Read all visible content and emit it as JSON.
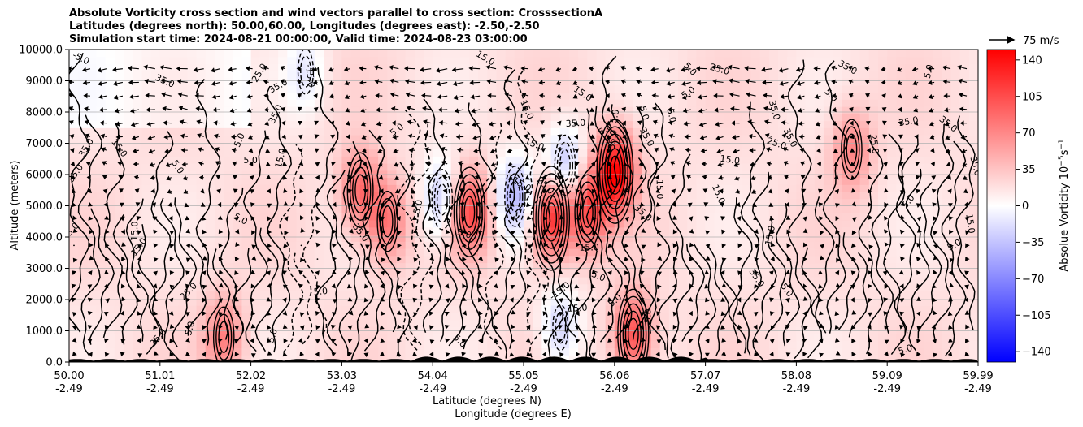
{
  "chart_data": {
    "type": "heatmap",
    "title_lines": [
      "Absolute Vorticity cross section and wind vectors parallel to cross section: CrosssectionA",
      "Latitudes (degrees north): 50.00,60.00, Longitudes (degrees east): -2.50,-2.50",
      "Simulation start time: 2024-08-21 00:00:00, Valid time: 2024-08-23 03:00:00"
    ],
    "ylabel": "Altitude (meters)",
    "xlabel_lines": [
      "Latitude (degrees N)",
      "Longitude (degrees E)"
    ],
    "x_ticks": [
      {
        "lat": "50.00",
        "lon": "-2.49"
      },
      {
        "lat": "51.01",
        "lon": "-2.49"
      },
      {
        "lat": "52.02",
        "lon": "-2.49"
      },
      {
        "lat": "53.03",
        "lon": "-2.49"
      },
      {
        "lat": "54.04",
        "lon": "-2.49"
      },
      {
        "lat": "55.05",
        "lon": "-2.49"
      },
      {
        "lat": "56.06",
        "lon": "-2.49"
      },
      {
        "lat": "57.07",
        "lon": "-2.49"
      },
      {
        "lat": "58.08",
        "lon": "-2.49"
      },
      {
        "lat": "59.09",
        "lon": "-2.49"
      },
      {
        "lat": "59.99",
        "lon": "-2.49"
      }
    ],
    "xlim": [
      50.0,
      59.99
    ],
    "y_ticks": [
      "0.0",
      "1000.0",
      "2000.0",
      "3000.0",
      "4000.0",
      "5000.0",
      "6000.0",
      "7000.0",
      "8000.0",
      "9000.0",
      "10000.0"
    ],
    "ylim": [
      0,
      10000
    ],
    "grid": "horizontal",
    "colorbar": {
      "label": "Absolue Vorticity 10",
      "label_exponent": "−5",
      "label_unit": "s",
      "label_unit_exponent": "−1",
      "ticks": [
        "140",
        "105",
        "70",
        "35",
        "0",
        "−35",
        "−70",
        "−105",
        "−140"
      ],
      "range": [
        -150,
        150
      ],
      "colors": {
        "neg": "#0000ff",
        "mid": "#ffffff",
        "pos": "#ff0000"
      }
    },
    "quiver_key": "75 m/s",
    "contour_labels": [
      "5.0",
      "15.0",
      "25.0",
      "35.0",
      "-5.0",
      "-15.0"
    ],
    "vortex_features": [
      {
        "lat": 51.7,
        "alt": 800,
        "value": 60
      },
      {
        "lat": 53.2,
        "alt": 5500,
        "value": 70
      },
      {
        "lat": 53.5,
        "alt": 4500,
        "value": 65
      },
      {
        "lat": 54.1,
        "alt": 5200,
        "value": -55
      },
      {
        "lat": 54.4,
        "alt": 4800,
        "value": 90
      },
      {
        "lat": 54.9,
        "alt": 5300,
        "value": -60
      },
      {
        "lat": 55.3,
        "alt": 4600,
        "value": 110
      },
      {
        "lat": 55.45,
        "alt": 6300,
        "value": -55
      },
      {
        "lat": 55.7,
        "alt": 4800,
        "value": 85
      },
      {
        "lat": 56.0,
        "alt": 6100,
        "value": 130
      },
      {
        "lat": 56.2,
        "alt": 900,
        "value": 90
      },
      {
        "lat": 55.4,
        "alt": 1100,
        "value": -45
      },
      {
        "lat": 52.6,
        "alt": 9300,
        "value": -30
      },
      {
        "lat": 58.6,
        "alt": 6800,
        "value": 55
      }
    ]
  }
}
